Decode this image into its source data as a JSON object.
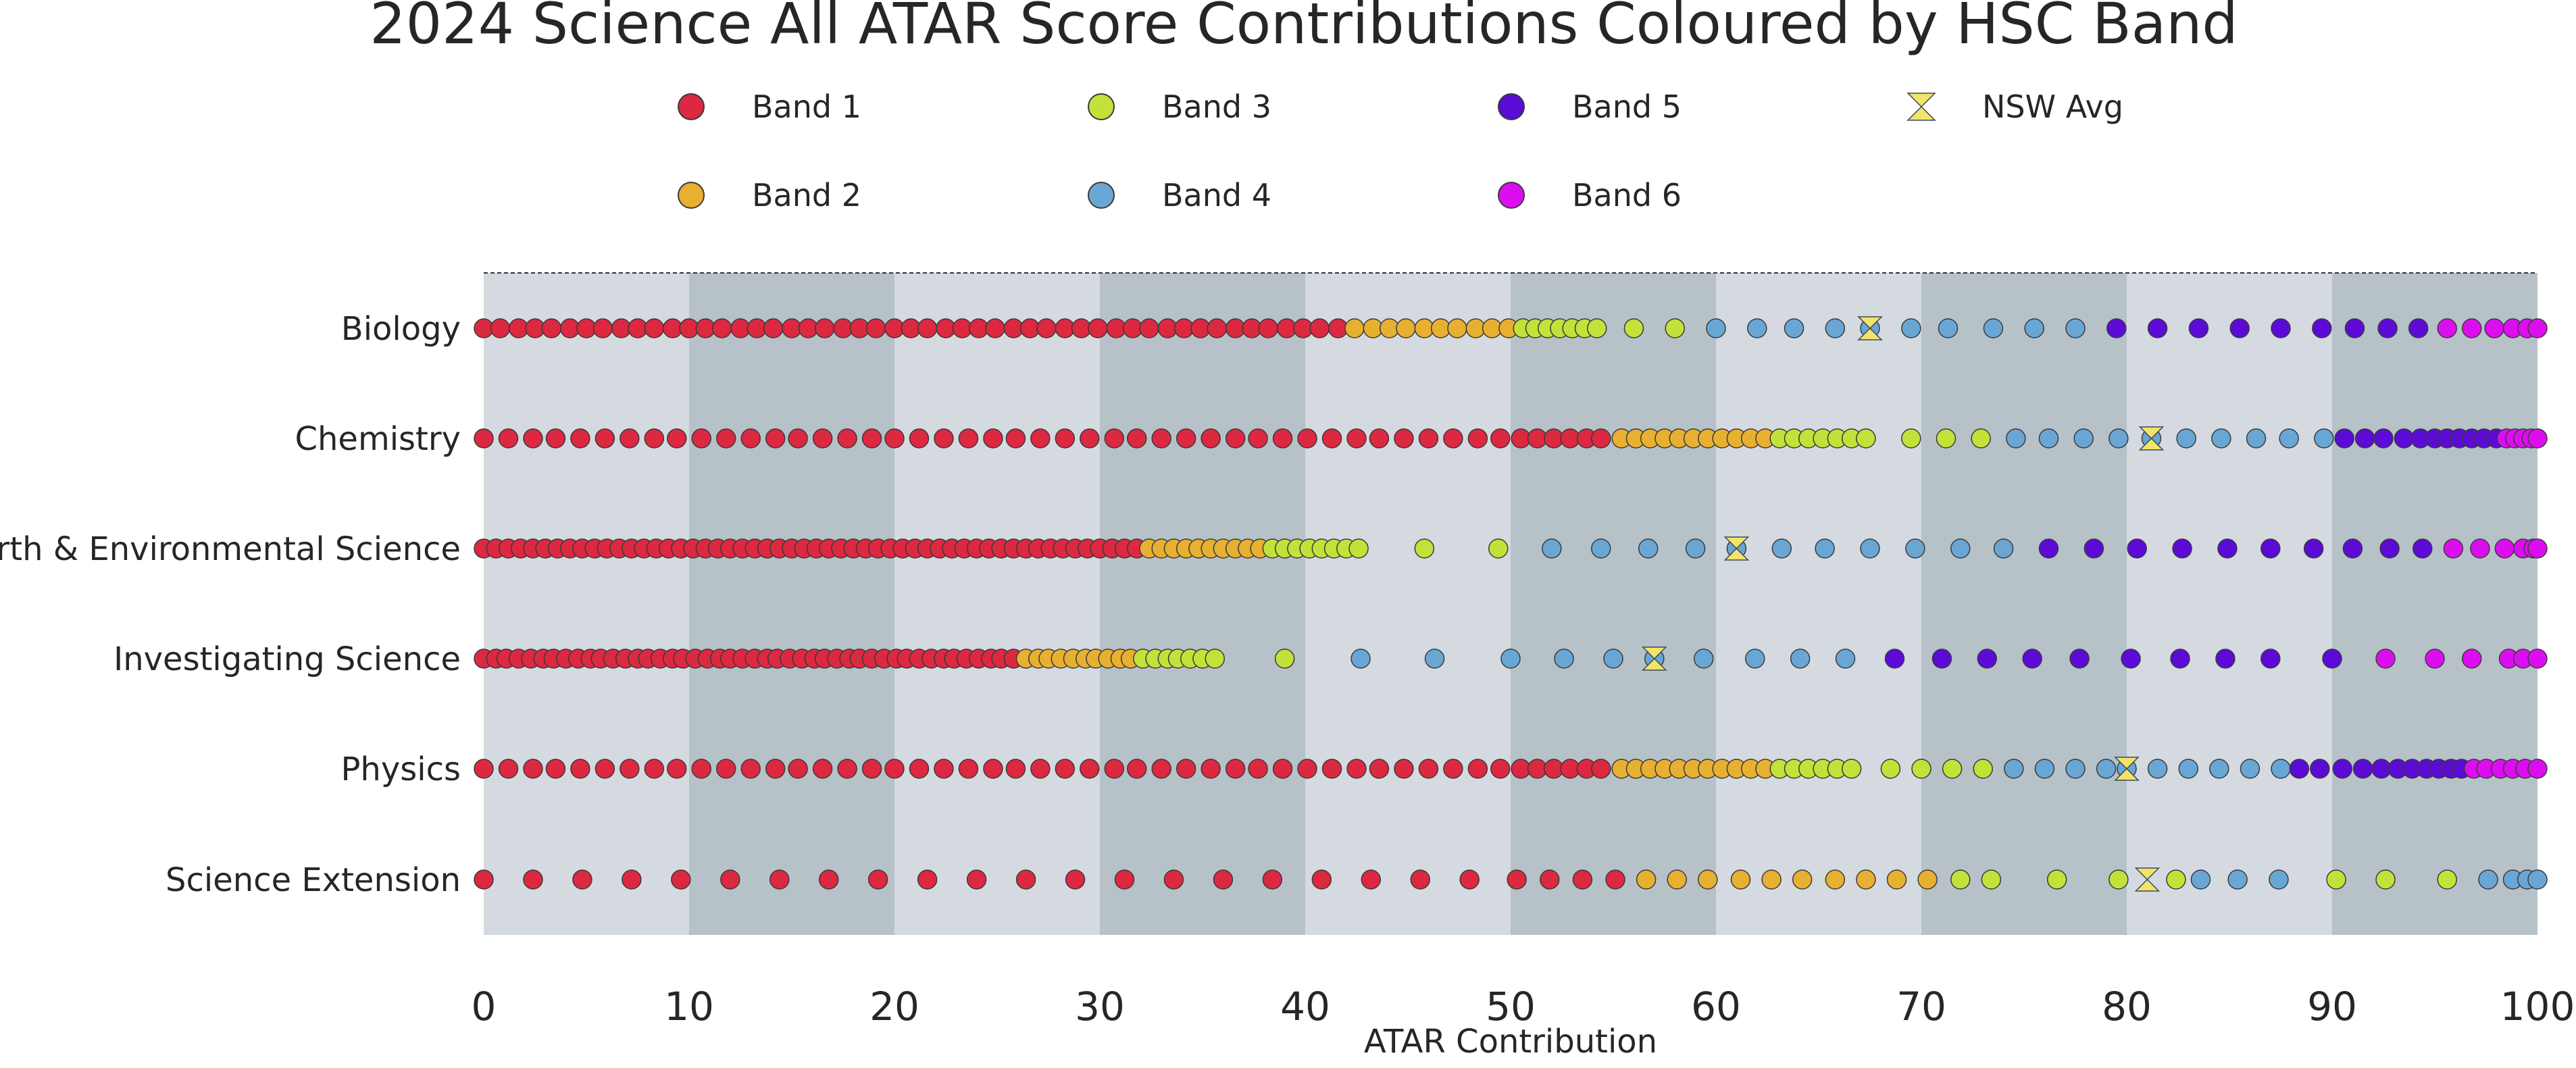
{
  "chart_data": {
    "type": "scatter",
    "title": "2024 Science All ATAR Score Contributions Coloured by HSC Band",
    "xlabel": "ATAR Contribution",
    "ylabel": "",
    "xlim": [
      0,
      100
    ],
    "xticks": [
      "0",
      "10",
      "20",
      "30",
      "40",
      "50",
      "60",
      "70",
      "80",
      "90",
      "100"
    ],
    "categories": [
      "Biology",
      "Chemistry",
      "Earth & Environmental Science",
      "Investigating Science",
      "Physics",
      "Science Extension"
    ],
    "legend": {
      "placement": "top",
      "entries": [
        {
          "name": "Band 1",
          "color": "#dc2840",
          "marker": "circle"
        },
        {
          "name": "Band 2",
          "color": "#e8b030",
          "marker": "circle"
        },
        {
          "name": "Band 3",
          "color": "#c2e23a",
          "marker": "circle"
        },
        {
          "name": "Band 4",
          "color": "#6aa6d4",
          "marker": "circle"
        },
        {
          "name": "Band 5",
          "color": "#5c0ad6",
          "marker": "circle"
        },
        {
          "name": "Band 6",
          "color": "#dc0ef0",
          "marker": "circle"
        },
        {
          "name": "NSW Avg",
          "color": "#f2e46a",
          "marker": "hourglass"
        }
      ]
    },
    "background_bands": {
      "light": "#d5dae1",
      "dark": "#b7c1c8"
    },
    "series": [
      {
        "category": "Biology",
        "nsw_avg": 67.5,
        "bands": [
          {
            "band": 1,
            "values": [
              0,
              0.8,
              1.7,
              2.5,
              3.3,
              4.2,
              5.0,
              5.8,
              6.7,
              7.5,
              8.3,
              9.2,
              10.0,
              10.8,
              11.6,
              12.5,
              13.3,
              14.1,
              15.0,
              15.8,
              16.6,
              17.5,
              18.3,
              19.1,
              20.0,
              20.8,
              21.6,
              22.5,
              23.3,
              24.1,
              24.9,
              25.8,
              26.6,
              27.4,
              28.3,
              29.1,
              29.9,
              30.8,
              31.6,
              32.4,
              33.3,
              34.1,
              34.9,
              35.7,
              36.6,
              37.4,
              38.2,
              39.1,
              39.9,
              40.7,
              41.6
            ]
          },
          {
            "band": 2,
            "values": [
              42.4,
              43.3,
              44.1,
              44.9,
              45.8,
              46.6,
              47.4,
              48.3,
              49.1,
              49.9
            ]
          },
          {
            "band": 3,
            "values": [
              50.6,
              51.2,
              51.8,
              52.4,
              53.0,
              53.6,
              54.2,
              56.0,
              58.0
            ]
          },
          {
            "band": 4,
            "values": [
              60.0,
              62.0,
              63.8,
              65.8,
              67.5,
              69.5,
              71.3,
              73.5,
              75.5,
              77.5
            ]
          },
          {
            "band": 5,
            "values": [
              79.5,
              81.5,
              83.5,
              85.5,
              87.5,
              89.5,
              91.1,
              92.7,
              94.2
            ]
          },
          {
            "band": 6,
            "values": [
              95.6,
              96.8,
              97.9,
              98.8,
              99.5,
              100
            ]
          }
        ]
      },
      {
        "category": "Chemistry",
        "nsw_avg": 81.2,
        "bands": [
          {
            "band": 1,
            "values": [
              0,
              1.2,
              2.4,
              3.5,
              4.7,
              5.9,
              7.1,
              8.3,
              9.4,
              10.6,
              11.8,
              13.0,
              14.2,
              15.3,
              16.5,
              17.7,
              18.9,
              20.0,
              21.2,
              22.4,
              23.6,
              24.8,
              25.9,
              27.1,
              28.3,
              29.5,
              30.7,
              31.8,
              33.0,
              34.2,
              35.4,
              36.6,
              37.7,
              38.9,
              40.1,
              41.3,
              42.5,
              43.6,
              44.8,
              46.0,
              47.2,
              48.4,
              49.5,
              50.5,
              51.3,
              52.1,
              52.9,
              53.7,
              54.4
            ]
          },
          {
            "band": 2,
            "values": [
              55.4,
              56.1,
              56.8,
              57.5,
              58.2,
              58.9,
              59.6,
              60.3,
              61.0,
              61.7,
              62.4
            ]
          },
          {
            "band": 3,
            "values": [
              63.1,
              63.8,
              64.5,
              65.2,
              65.9,
              66.6,
              67.3,
              69.5,
              71.2,
              72.9
            ]
          },
          {
            "band": 4,
            "values": [
              74.6,
              76.2,
              77.9,
              79.6,
              81.2,
              82.9,
              84.6,
              86.3,
              87.9,
              89.6
            ]
          },
          {
            "band": 5,
            "values": [
              90.6,
              91.6,
              92.5,
              93.5,
              94.3,
              95.0,
              95.6,
              96.2,
              96.8,
              97.4,
              98.0
            ]
          },
          {
            "band": 6,
            "values": [
              98.5,
              98.9,
              99.3,
              99.7,
              100
            ]
          }
        ]
      },
      {
        "category": "Earth & Environmental Science",
        "nsw_avg": 61.0,
        "bands": [
          {
            "band": 1,
            "values": [
              0,
              0.6,
              1.2,
              1.8,
              2.4,
              3.0,
              3.6,
              4.2,
              4.8,
              5.4,
              6.0,
              6.6,
              7.2,
              7.8,
              8.4,
              9.0,
              9.6,
              10.2,
              10.8,
              11.4,
              12.0,
              12.6,
              13.2,
              13.8,
              14.4,
              15.0,
              15.6,
              16.2,
              16.8,
              17.4,
              18.0,
              18.6,
              19.2,
              19.8,
              20.4,
              21.0,
              21.6,
              22.2,
              22.8,
              23.4,
              24.0,
              24.6,
              25.2,
              25.8,
              26.4,
              27.0,
              27.6,
              28.2,
              28.8,
              29.4,
              30.0,
              30.6,
              31.2,
              31.8
            ]
          },
          {
            "band": 2,
            "values": [
              32.4,
              33.0,
              33.6,
              34.2,
              34.8,
              35.4,
              36.0,
              36.6,
              37.2,
              37.8
            ]
          },
          {
            "band": 3,
            "values": [
              38.4,
              39.0,
              39.6,
              40.2,
              40.8,
              41.4,
              42.0,
              42.6,
              45.8,
              49.4
            ]
          },
          {
            "band": 4,
            "values": [
              52.0,
              54.4,
              56.7,
              59.0,
              61.0,
              63.2,
              65.3,
              67.5,
              69.7,
              71.9,
              74.0
            ]
          },
          {
            "band": 5,
            "values": [
              76.2,
              78.4,
              80.5,
              82.7,
              84.9,
              87.0,
              89.1,
              91.0,
              92.8,
              94.4
            ]
          },
          {
            "band": 6,
            "values": [
              95.9,
              97.2,
              98.4,
              99.3,
              99.8,
              100
            ]
          }
        ]
      },
      {
        "category": "Investigating Science",
        "nsw_avg": 57.0,
        "bands": [
          {
            "band": 1,
            "values": [
              0,
              0.6,
              1.1,
              1.7,
              2.3,
              2.9,
              3.4,
              4.0,
              4.6,
              5.2,
              5.7,
              6.3,
              6.9,
              7.5,
              8.0,
              8.6,
              9.2,
              9.7,
              10.3,
              10.9,
              11.5,
              12.0,
              12.6,
              13.2,
              13.8,
              14.3,
              14.9,
              15.5,
              16.1,
              16.6,
              17.2,
              17.8,
              18.3,
              18.9,
              19.5,
              20.1,
              20.6,
              21.2,
              21.8,
              22.4,
              22.9,
              23.5,
              24.1,
              24.7,
              25.2,
              25.8
            ]
          },
          {
            "band": 2,
            "values": [
              26.4,
              27.0,
              27.5,
              28.1,
              28.7,
              29.3,
              29.8,
              30.4,
              31.0,
              31.5
            ]
          },
          {
            "band": 3,
            "values": [
              32.1,
              32.7,
              33.3,
              33.8,
              34.4,
              35.0,
              35.6,
              39.0
            ]
          },
          {
            "band": 4,
            "values": [
              42.7,
              46.3,
              50.0,
              52.6,
              55.0,
              57.0,
              59.4,
              61.9,
              64.1,
              66.3
            ]
          },
          {
            "band": 5,
            "values": [
              68.7,
              71.0,
              73.2,
              75.4,
              77.7,
              80.2,
              82.6,
              84.8,
              87.0,
              90.0
            ]
          },
          {
            "band": 6,
            "values": [
              92.6,
              95.0,
              96.8,
              98.6,
              99.3,
              100
            ]
          }
        ]
      },
      {
        "category": "Physics",
        "nsw_avg": 80.0,
        "bands": [
          {
            "band": 1,
            "values": [
              0,
              1.2,
              2.4,
              3.5,
              4.7,
              5.9,
              7.1,
              8.3,
              9.4,
              10.6,
              11.8,
              13.0,
              14.2,
              15.3,
              16.5,
              17.7,
              18.9,
              20.0,
              21.2,
              22.4,
              23.6,
              24.8,
              25.9,
              27.1,
              28.3,
              29.5,
              30.7,
              31.8,
              33.0,
              34.2,
              35.4,
              36.6,
              37.7,
              38.9,
              40.1,
              41.3,
              42.5,
              43.6,
              44.8,
              46.0,
              47.2,
              48.4,
              49.5,
              50.5,
              51.3,
              52.1,
              52.9,
              53.7,
              54.4
            ]
          },
          {
            "band": 2,
            "values": [
              55.4,
              56.1,
              56.8,
              57.5,
              58.2,
              58.9,
              59.6,
              60.3,
              61.0,
              61.7,
              62.4
            ]
          },
          {
            "band": 3,
            "values": [
              63.1,
              63.8,
              64.5,
              65.2,
              65.9,
              66.6,
              68.5,
              70.0,
              71.5,
              73.0
            ]
          },
          {
            "band": 4,
            "values": [
              74.5,
              76.0,
              77.5,
              79.0,
              80.0,
              81.5,
              83.0,
              84.5,
              86.0,
              87.5
            ]
          },
          {
            "band": 5,
            "values": [
              88.4,
              89.4,
              90.5,
              91.5,
              92.4,
              93.2,
              93.9,
              94.6,
              95.2,
              95.8,
              96.3
            ]
          },
          {
            "band": 6,
            "values": [
              96.9,
              97.5,
              98.2,
              98.8,
              99.4,
              100
            ]
          }
        ]
      },
      {
        "category": "Science Extension",
        "nsw_avg": 81.0,
        "bands": [
          {
            "band": 1,
            "values": [
              0,
              2.4,
              4.8,
              7.2,
              9.6,
              12.0,
              14.4,
              16.8,
              19.2,
              21.6,
              24.0,
              26.4,
              28.8,
              31.2,
              33.6,
              36.0,
              38.4,
              40.8,
              43.2,
              45.6,
              48.0,
              50.3,
              51.9,
              53.5,
              55.1
            ]
          },
          {
            "band": 2,
            "values": [
              56.6,
              58.1,
              59.6,
              61.2,
              62.7,
              64.2,
              65.8,
              67.3,
              68.8,
              70.3
            ]
          },
          {
            "band": 3,
            "values": [
              71.9,
              73.4,
              76.6,
              79.6,
              82.4
            ]
          },
          {
            "band": 4,
            "values": [
              83.6,
              85.4,
              87.4
            ]
          },
          {
            "band": 3,
            "values": [
              90.2,
              92.6,
              95.6
            ]
          },
          {
            "band": 4,
            "values": [
              97.6,
              98.8,
              99.5,
              100
            ]
          }
        ]
      }
    ]
  }
}
